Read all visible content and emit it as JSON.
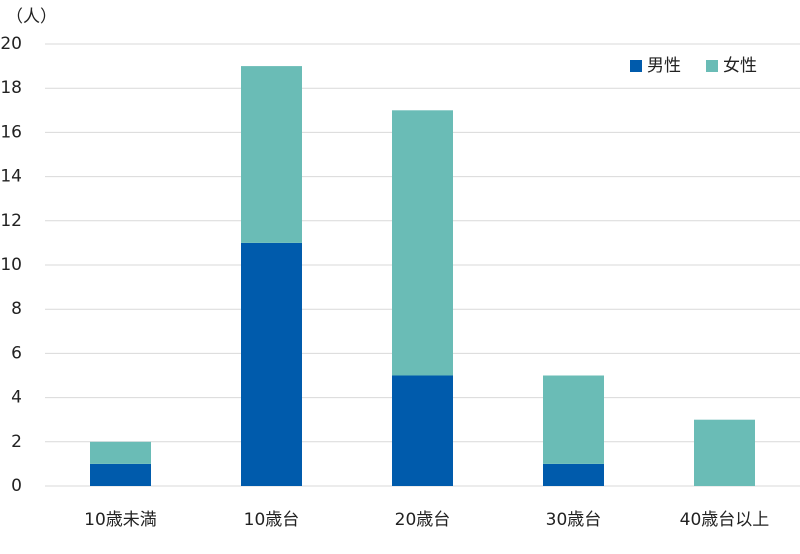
{
  "chart_data": {
    "type": "stacked_bar",
    "y_label": "（人）",
    "categories": [
      "10歳未満",
      "10歳台",
      "20歳台",
      "30歳台",
      "40歳台以上"
    ],
    "series": [
      {
        "name": "男性",
        "color": "#005bac",
        "values": [
          1,
          11,
          5,
          1,
          0
        ]
      },
      {
        "name": "女性",
        "color": "#6abcb6",
        "values": [
          1,
          8,
          12,
          4,
          3
        ]
      }
    ],
    "ylim": [
      0,
      20
    ],
    "yticks": [
      0,
      2,
      4,
      6,
      8,
      10,
      12,
      14,
      16,
      18,
      20
    ],
    "grid": true,
    "legend": "top-right"
  }
}
